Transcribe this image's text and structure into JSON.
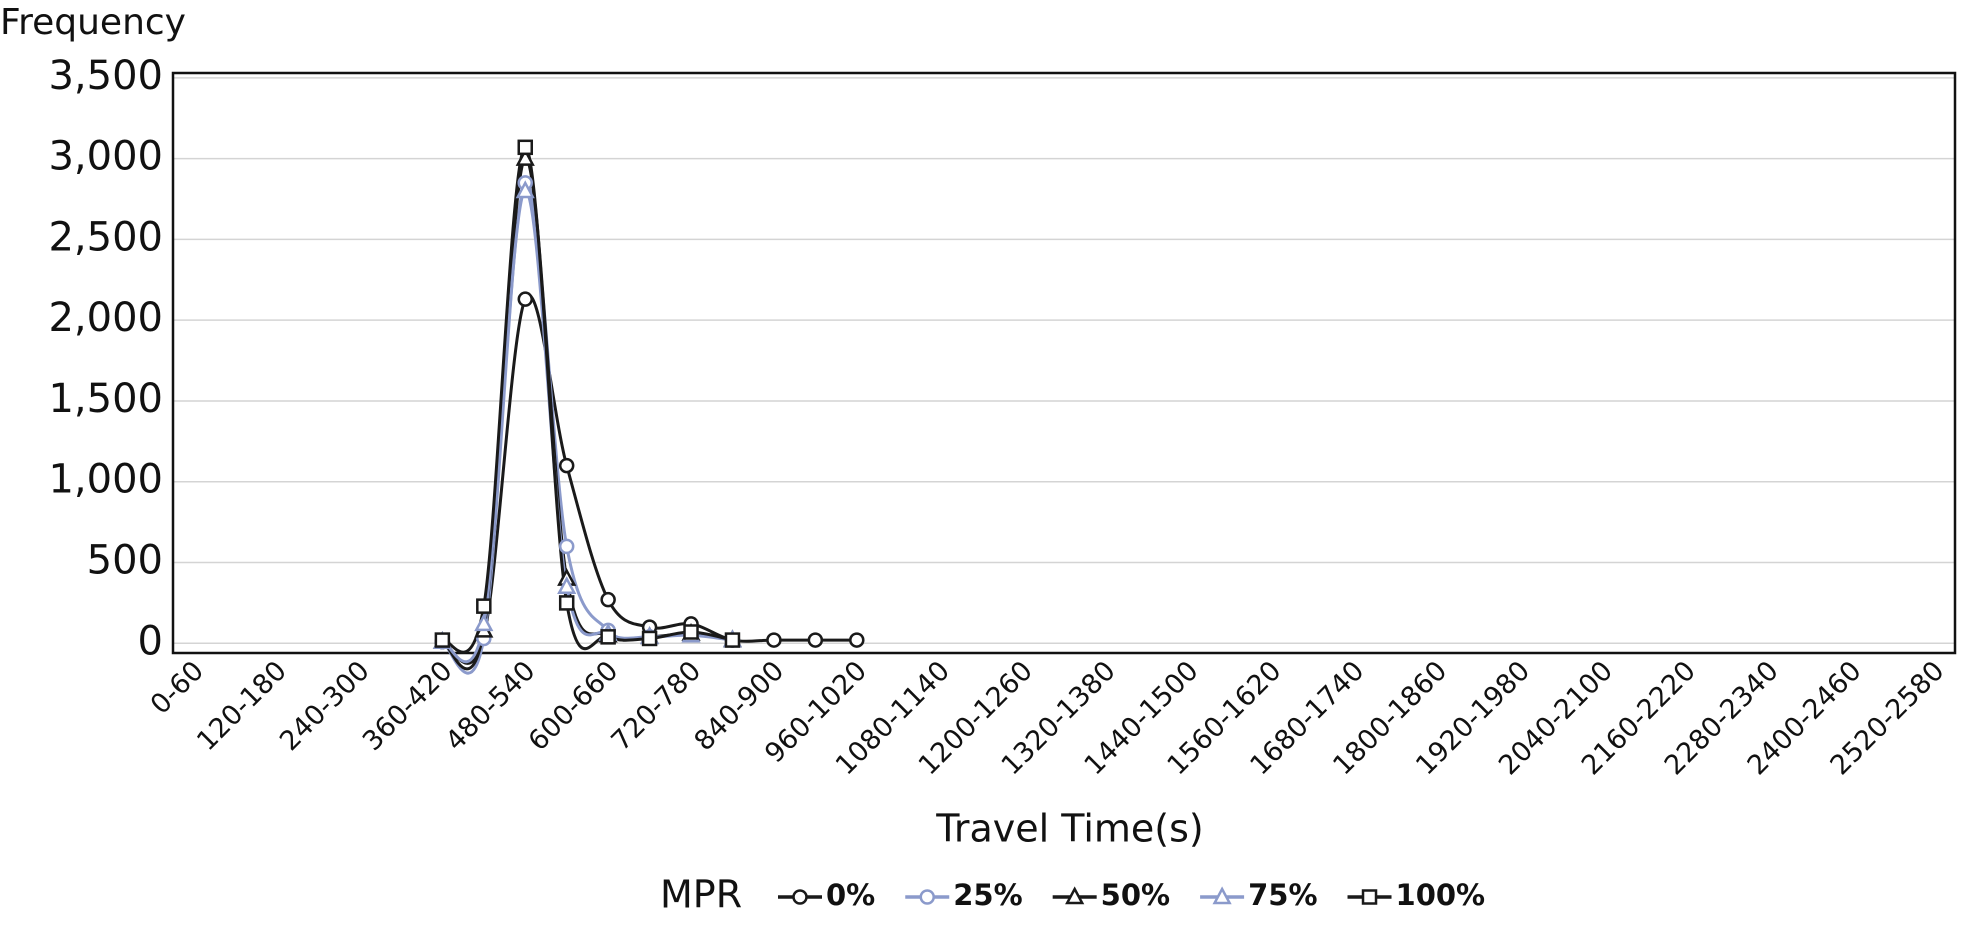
{
  "chart_data": {
    "type": "line",
    "y_label": "Frequency",
    "x_label": "Travel Time(s)",
    "legend_title": "MPR",
    "categories": [
      "0-60",
      null,
      "120-180",
      null,
      "240-300",
      null,
      "360-420",
      null,
      "480-540",
      null,
      "600-660",
      null,
      "720-780",
      null,
      "840-900",
      null,
      "960-1020",
      null,
      "1080-1140",
      null,
      "1200-1260",
      null,
      "1320-1380",
      null,
      "1440-1500",
      null,
      "1560-1620",
      null,
      "1680-1740",
      null,
      "1800-1860",
      null,
      "1920-1980",
      null,
      "2040-2100",
      null,
      "2160-2220",
      null,
      "2280-2340",
      null,
      "2400-2460",
      null,
      "2520-2580"
    ],
    "series": [
      {
        "name": "0%",
        "color": "#1a1a1a",
        "marker": "circle",
        "values": [
          null,
          null,
          null,
          null,
          null,
          null,
          10,
          40,
          2130,
          1100,
          270,
          100,
          120,
          20,
          20,
          20,
          20,
          null,
          null,
          null,
          null,
          null,
          null,
          null,
          null,
          null,
          null,
          null,
          null,
          null,
          null,
          null,
          null,
          null,
          null,
          null,
          null,
          null,
          null,
          null,
          null,
          null,
          null
        ]
      },
      {
        "name": "25%",
        "color": "#8b9acb",
        "marker": "circle",
        "values": [
          null,
          null,
          null,
          null,
          null,
          null,
          10,
          30,
          2850,
          600,
          80,
          40,
          60,
          20,
          null,
          null,
          null,
          null,
          null,
          null,
          null,
          null,
          null,
          null,
          null,
          null,
          null,
          null,
          null,
          null,
          null,
          null,
          null,
          null,
          null,
          null,
          null,
          null,
          null,
          null,
          null,
          null,
          null
        ]
      },
      {
        "name": "50%",
        "color": "#1a1a1a",
        "marker": "triangle",
        "values": [
          null,
          null,
          null,
          null,
          null,
          null,
          10,
          80,
          3000,
          400,
          50,
          40,
          60,
          20,
          null,
          null,
          null,
          null,
          null,
          null,
          null,
          null,
          null,
          null,
          null,
          null,
          null,
          null,
          null,
          null,
          null,
          null,
          null,
          null,
          null,
          null,
          null,
          null,
          null,
          null,
          null,
          null,
          null
        ]
      },
      {
        "name": "75%",
        "color": "#8b9acb",
        "marker": "triangle",
        "values": [
          null,
          null,
          null,
          null,
          null,
          null,
          10,
          120,
          2800,
          350,
          60,
          40,
          50,
          20,
          null,
          null,
          null,
          null,
          null,
          null,
          null,
          null,
          null,
          null,
          null,
          null,
          null,
          null,
          null,
          null,
          null,
          null,
          null,
          null,
          null,
          null,
          null,
          null,
          null,
          null,
          null,
          null,
          null
        ]
      },
      {
        "name": "100%",
        "color": "#1a1a1a",
        "marker": "square",
        "values": [
          null,
          null,
          null,
          null,
          null,
          null,
          20,
          230,
          3070,
          250,
          40,
          30,
          70,
          20,
          null,
          null,
          null,
          null,
          null,
          null,
          null,
          null,
          null,
          null,
          null,
          null,
          null,
          null,
          null,
          null,
          null,
          null,
          null,
          null,
          null,
          null,
          null,
          null,
          null,
          null,
          null,
          null,
          null
        ]
      }
    ],
    "ylim": [
      -60,
      3530
    ],
    "yticks": [
      0,
      500,
      {
        "value": 1000,
        "label": "1,000"
      },
      {
        "value": 1500,
        "label": "1,500"
      },
      {
        "value": 2000,
        "label": "2,000"
      },
      {
        "value": 2500,
        "label": "2,500"
      },
      {
        "value": 3000,
        "label": "3,000"
      },
      {
        "value": 3500,
        "label": "3,500"
      }
    ],
    "grid": true
  }
}
